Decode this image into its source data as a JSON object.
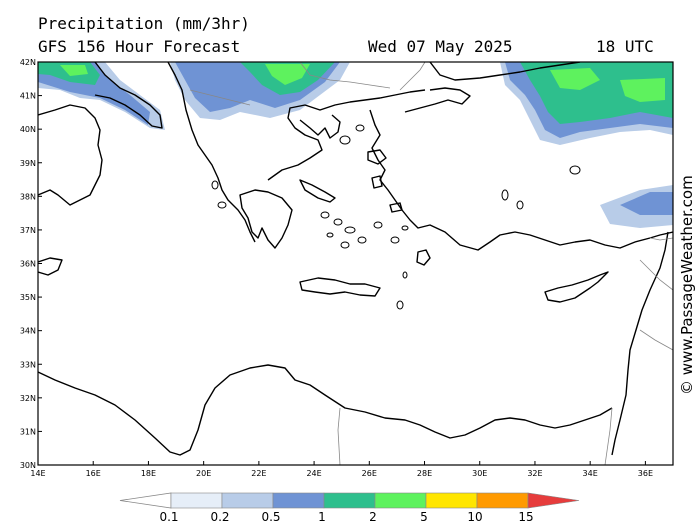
{
  "header": {
    "title": "Precipitation (mm/3hr)",
    "forecast": "GFS 156 Hour Forecast",
    "date": "Wed 07 May 2025",
    "time": "18 UTC"
  },
  "watermark": "© www.PassageWeather.com",
  "map": {
    "lon_range": [
      14,
      37
    ],
    "lat_range": [
      30,
      42
    ],
    "lat_labels": [
      "42N",
      "41N",
      "40N",
      "39N",
      "38N",
      "37N",
      "36N",
      "35N",
      "34N",
      "33N",
      "32N",
      "31N",
      "30N"
    ],
    "lon_labels": [
      "14E",
      "16E",
      "18E",
      "20E",
      "22E",
      "24E",
      "26E",
      "28E",
      "30E",
      "32E",
      "34E",
      "36E"
    ]
  },
  "legend": {
    "labels": [
      "0.1",
      "0.2",
      "0.5",
      "1",
      "2",
      "5",
      "10",
      "15"
    ],
    "colors": {
      "c1": "#e6eef8",
      "c2": "#b8cce8",
      "c3": "#6f93d4",
      "c4": "#2ebf8d",
      "c5": "#5ef25e",
      "c6": "#ffe600",
      "c7": "#ff9a00",
      "c8": "#e63c3c"
    }
  }
}
